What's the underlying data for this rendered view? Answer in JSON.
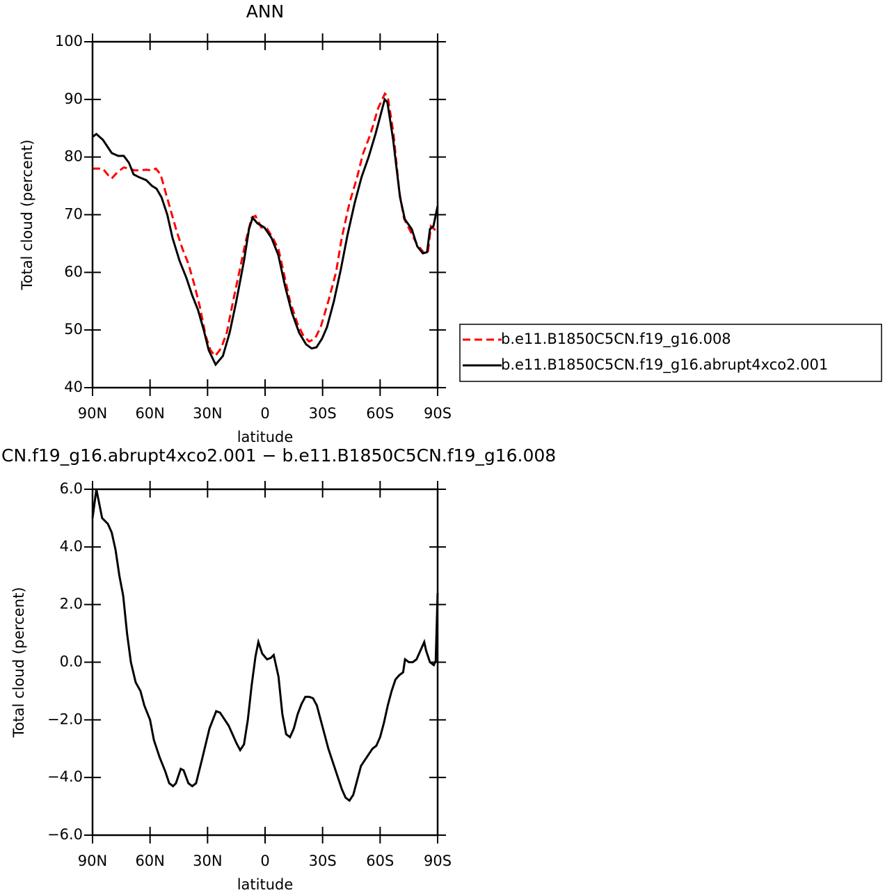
{
  "chart_data": [
    {
      "type": "line",
      "title": "ANN",
      "xlabel": "latitude",
      "ylabel": "Total cloud (percent)",
      "xlim": [
        90,
        -90
      ],
      "ylim": [
        40,
        100
      ],
      "xticks": [
        {
          "value": 90,
          "label": "90N"
        },
        {
          "value": 60,
          "label": "60N"
        },
        {
          "value": 30,
          "label": "30N"
        },
        0,
        {
          "value": -30,
          "label": "30S"
        },
        {
          "value": -60,
          "label": "60S"
        },
        {
          "value": -90,
          "label": "90S"
        }
      ],
      "yticks": [
        40,
        50,
        60,
        70,
        80,
        90,
        100
      ],
      "legend": "right",
      "series": [
        {
          "name": "b.e11.B1850C5CN.f19_g16.008",
          "color": "#ff0000",
          "linestyle": "dashed",
          "x": [
            90,
            84.6,
            81,
            80,
            76.6,
            73.7,
            71,
            68,
            65,
            62,
            59,
            57,
            54.5,
            52,
            49,
            46,
            43,
            40,
            37,
            34,
            31,
            28.5,
            26,
            23,
            20,
            17,
            13.5,
            10,
            7,
            5,
            2,
            -1,
            -4,
            -7,
            -10,
            -13,
            -17,
            -20,
            -23,
            -26,
            -29,
            -33,
            -37,
            -40,
            -44,
            -48,
            -51,
            -55,
            -59,
            -62.5,
            -64,
            -67,
            -70,
            -72.5,
            -76,
            -79,
            -83,
            -85,
            -86.5,
            -90
          ],
          "values": [
            78,
            78,
            76.5,
            76.3,
            77.5,
            78.2,
            78,
            77.7,
            77.7,
            77.8,
            77.7,
            78,
            77,
            74,
            70.5,
            67,
            64,
            61.5,
            58,
            54,
            49,
            46.5,
            45.5,
            46.8,
            49.5,
            54.5,
            60,
            65.5,
            69.5,
            69.8,
            67.8,
            67.6,
            66,
            64,
            59.5,
            55,
            51,
            49,
            48,
            48.5,
            50.5,
            55,
            60,
            66,
            72,
            76.5,
            80.5,
            84,
            88.5,
            91,
            90.5,
            84,
            74,
            69.3,
            67,
            65,
            63.3,
            63.7,
            68,
            67
          ]
        },
        {
          "name": "b.e11.B1850C5CN.f19_g16.abrupt4xco2.001",
          "color": "#000000",
          "linestyle": "solid",
          "x": [
            90,
            88,
            84.6,
            80,
            76.6,
            73.7,
            71,
            68.6,
            65.7,
            62,
            59,
            56.6,
            54,
            51,
            48.3,
            44.6,
            41,
            38,
            35,
            32,
            29.4,
            25.8,
            22,
            18.5,
            15,
            11,
            8.4,
            6.5,
            4,
            0.4,
            -3.3,
            -6.9,
            -10.5,
            -14,
            -17.8,
            -21.4,
            -24.3,
            -26.8,
            -29.7,
            -32.3,
            -35.9,
            -39.5,
            -43,
            -46.7,
            -50.3,
            -54,
            -57.6,
            -61.2,
            -62.4,
            -63.8,
            -66.8,
            -70.4,
            -72.9,
            -76.5,
            -79.4,
            -82.3,
            -84.5,
            -86,
            -87.8,
            -90
          ],
          "values": [
            83.5,
            84,
            83,
            80.7,
            80.2,
            80.2,
            79,
            77,
            76.5,
            76,
            75,
            74.5,
            73,
            70,
            66,
            62,
            59,
            56,
            53.5,
            50,
            46.5,
            44,
            45.5,
            49.5,
            55,
            62,
            67.5,
            69.5,
            68.5,
            67.8,
            66,
            63,
            57.5,
            53,
            49.5,
            47.5,
            46.8,
            47,
            48.5,
            50.5,
            55,
            60.5,
            66.5,
            72,
            76.5,
            80,
            84,
            88.5,
            90,
            89.5,
            83,
            73,
            69.2,
            67.5,
            64.5,
            63.3,
            63.5,
            67.5,
            68,
            71.5
          ]
        }
      ]
    },
    {
      "type": "line",
      "title": "CN.f19_g16.abrupt4xco2.001 − b.e11.B1850C5CN.f19_g16.008",
      "xlabel": "latitude",
      "ylabel": "Total cloud (percent)",
      "xlim": [
        90,
        -90
      ],
      "ylim": [
        -6,
        6
      ],
      "xticks": [
        {
          "value": 90,
          "label": "90N"
        },
        {
          "value": 60,
          "label": "60N"
        },
        {
          "value": 30,
          "label": "30N"
        },
        0,
        {
          "value": -30,
          "label": "30S"
        },
        {
          "value": -60,
          "label": "60S"
        },
        {
          "value": -90,
          "label": "90S"
        }
      ],
      "yticks": [
        {
          "value": -6,
          "label": "−6.0"
        },
        {
          "value": -4,
          "label": "−4.0"
        },
        {
          "value": -2,
          "label": "−2.0"
        },
        {
          "value": 0,
          "label": "0.0"
        },
        {
          "value": 2,
          "label": "2.0"
        },
        {
          "value": 4,
          "label": "4.0"
        },
        {
          "value": 6,
          "label": "6.0"
        }
      ],
      "series": [
        {
          "color": "#000000",
          "linestyle": "solid",
          "x": [
            90,
            88,
            85,
            82,
            80,
            78,
            76,
            74,
            72,
            70,
            67.5,
            65,
            63,
            60,
            58,
            55,
            52,
            50,
            48,
            46.5,
            44,
            42.5,
            40,
            38,
            36,
            33,
            29,
            25.5,
            23.5,
            21,
            19,
            17,
            15,
            13,
            11,
            9,
            7,
            5,
            3.5,
            1.5,
            -1,
            -3,
            -4.5,
            -7,
            -9,
            -11,
            -13,
            -15,
            -17,
            -19,
            -21,
            -23,
            -25,
            -27,
            -29,
            -31,
            -33,
            -36,
            -38,
            -40,
            -42,
            -44,
            -46,
            -48,
            -50,
            -52,
            -54,
            -56,
            -58,
            -60,
            -62,
            -64,
            -66,
            -68,
            -70,
            -72,
            -73,
            -75,
            -77,
            -79,
            -81,
            -83,
            -84,
            -86,
            -88,
            -89,
            -90
          ],
          "values": [
            5.0,
            6.0,
            5.0,
            4.8,
            4.5,
            3.9,
            3.0,
            2.3,
            1.0,
            0.0,
            -0.7,
            -1.0,
            -1.5,
            -2.0,
            -2.7,
            -3.3,
            -3.8,
            -4.2,
            -4.3,
            -4.2,
            -3.7,
            -3.75,
            -4.2,
            -4.3,
            -4.2,
            -3.4,
            -2.3,
            -1.7,
            -1.75,
            -2.0,
            -2.2,
            -2.5,
            -2.8,
            -3.05,
            -2.85,
            -2.0,
            -0.8,
            0.2,
            0.7,
            0.3,
            0.1,
            0.15,
            0.25,
            -0.5,
            -1.8,
            -2.5,
            -2.6,
            -2.3,
            -1.8,
            -1.45,
            -1.2,
            -1.2,
            -1.25,
            -1.5,
            -2.0,
            -2.5,
            -3.0,
            -3.6,
            -4.0,
            -4.4,
            -4.7,
            -4.8,
            -4.6,
            -4.1,
            -3.6,
            -3.4,
            -3.2,
            -3.0,
            -2.9,
            -2.6,
            -2.1,
            -1.5,
            -1.0,
            -0.6,
            -0.45,
            -0.35,
            0.1,
            0.0,
            0.0,
            0.1,
            0.4,
            0.7,
            0.4,
            0.0,
            -0.1,
            0.05,
            2.4
          ]
        }
      ]
    }
  ]
}
